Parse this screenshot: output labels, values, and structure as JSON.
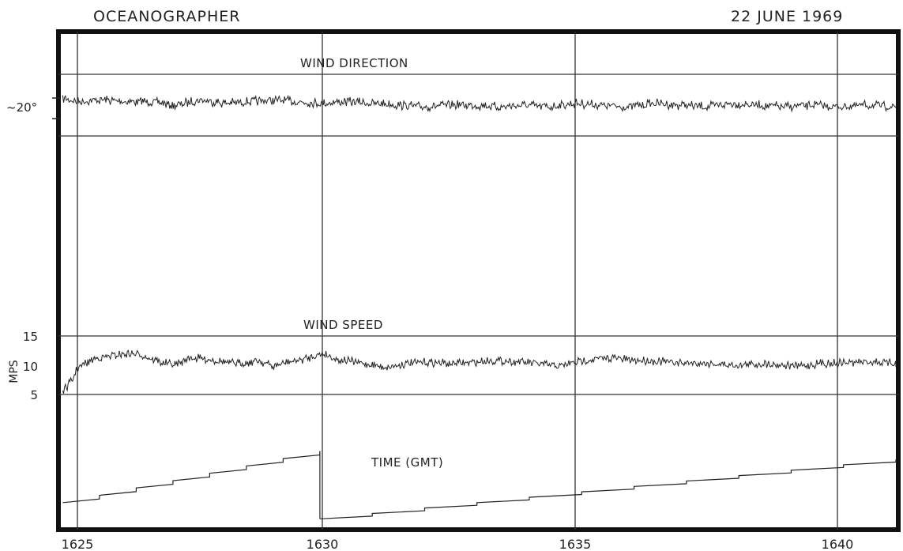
{
  "header": {
    "vessel": "OCEANOGRAPHER",
    "date": "22 JUNE 1969"
  },
  "chart_data": {
    "type": "line",
    "x_ticks": [
      "1625",
      "1630",
      "1635",
      "1640"
    ],
    "xlim": [
      "1624.7",
      "1641.2"
    ],
    "panels": [
      {
        "label": "WIND DIRECTION",
        "y_tick": "~20°",
        "series": [
          {
            "x": [
              1624.7,
              1625.0,
              1625.5,
              1626.0,
              1626.5,
              1627.0,
              1627.5,
              1628.0,
              1628.5,
              1629.0,
              1629.5,
              1630.0,
              1630.5,
              1631.0,
              1631.5,
              1632.0,
              1632.5,
              1633.0,
              1633.5,
              1634.0,
              1634.5,
              1635.0,
              1635.5,
              1636.0,
              1636.5,
              1637.0,
              1637.5,
              1638.0,
              1638.5,
              1639.0,
              1639.5,
              1640.0,
              1640.5,
              1641.2
            ],
            "y": [
              24,
              22,
              23,
              22,
              22,
              20,
              23,
              21,
              22,
              23,
              22,
              21,
              22,
              21,
              20,
              19,
              20,
              20,
              19,
              20,
              19,
              21,
              20,
              19,
              21,
              20,
              19,
              21,
              20,
              19,
              20,
              19,
              20,
              19
            ]
          }
        ]
      },
      {
        "label": "WIND SPEED",
        "y_axis_label": "MPS",
        "y_ticks": [
          "5",
          "10",
          "15"
        ],
        "ylim": [
          5,
          15
        ],
        "series": [
          {
            "x": [
              1624.7,
              1624.9,
              1625.0,
              1625.3,
              1625.6,
              1626.0,
              1626.3,
              1626.7,
              1627.0,
              1627.3,
              1627.7,
              1628.0,
              1628.3,
              1628.7,
              1629.0,
              1629.3,
              1629.6,
              1630.0,
              1630.3,
              1630.7,
              1631.0,
              1631.3,
              1631.7,
              1632.0,
              1632.3,
              1632.7,
              1633.0,
              1633.3,
              1633.7,
              1634.0,
              1634.3,
              1634.7,
              1635.0,
              1635.3,
              1635.7,
              1636.0,
              1636.3,
              1636.7,
              1637.0,
              1637.3,
              1637.7,
              1638.0,
              1638.3,
              1638.7,
              1639.0,
              1639.3,
              1639.7,
              1640.0,
              1640.3,
              1640.7,
              1641.2
            ],
            "y": [
              5.5,
              7.5,
              9.5,
              11.0,
              11.5,
              12.0,
              11.8,
              10.5,
              10.0,
              11.3,
              11.0,
              10.5,
              10.3,
              10.8,
              9.8,
              10.5,
              11.0,
              12.0,
              11.0,
              10.5,
              10.0,
              9.7,
              10.3,
              10.5,
              10.4,
              10.3,
              10.5,
              10.8,
              10.7,
              10.5,
              10.2,
              9.8,
              10.5,
              11.0,
              11.3,
              10.9,
              10.8,
              10.6,
              10.4,
              10.4,
              10.2,
              10.0,
              10.1,
              10.3,
              10.0,
              9.9,
              10.3,
              10.4,
              10.5,
              10.6,
              10.2
            ]
          }
        ]
      },
      {
        "label": "TIME (GMT)",
        "series": [
          {
            "x": [
              1624.7,
              1629.95
            ],
            "y_start": 0.2,
            "y_end": 0.58,
            "steps": 7
          },
          {
            "x": [
              1629.95,
              1641.2
            ],
            "y_start": 0.08,
            "y_end": 0.52,
            "steps": 11
          }
        ]
      }
    ]
  }
}
